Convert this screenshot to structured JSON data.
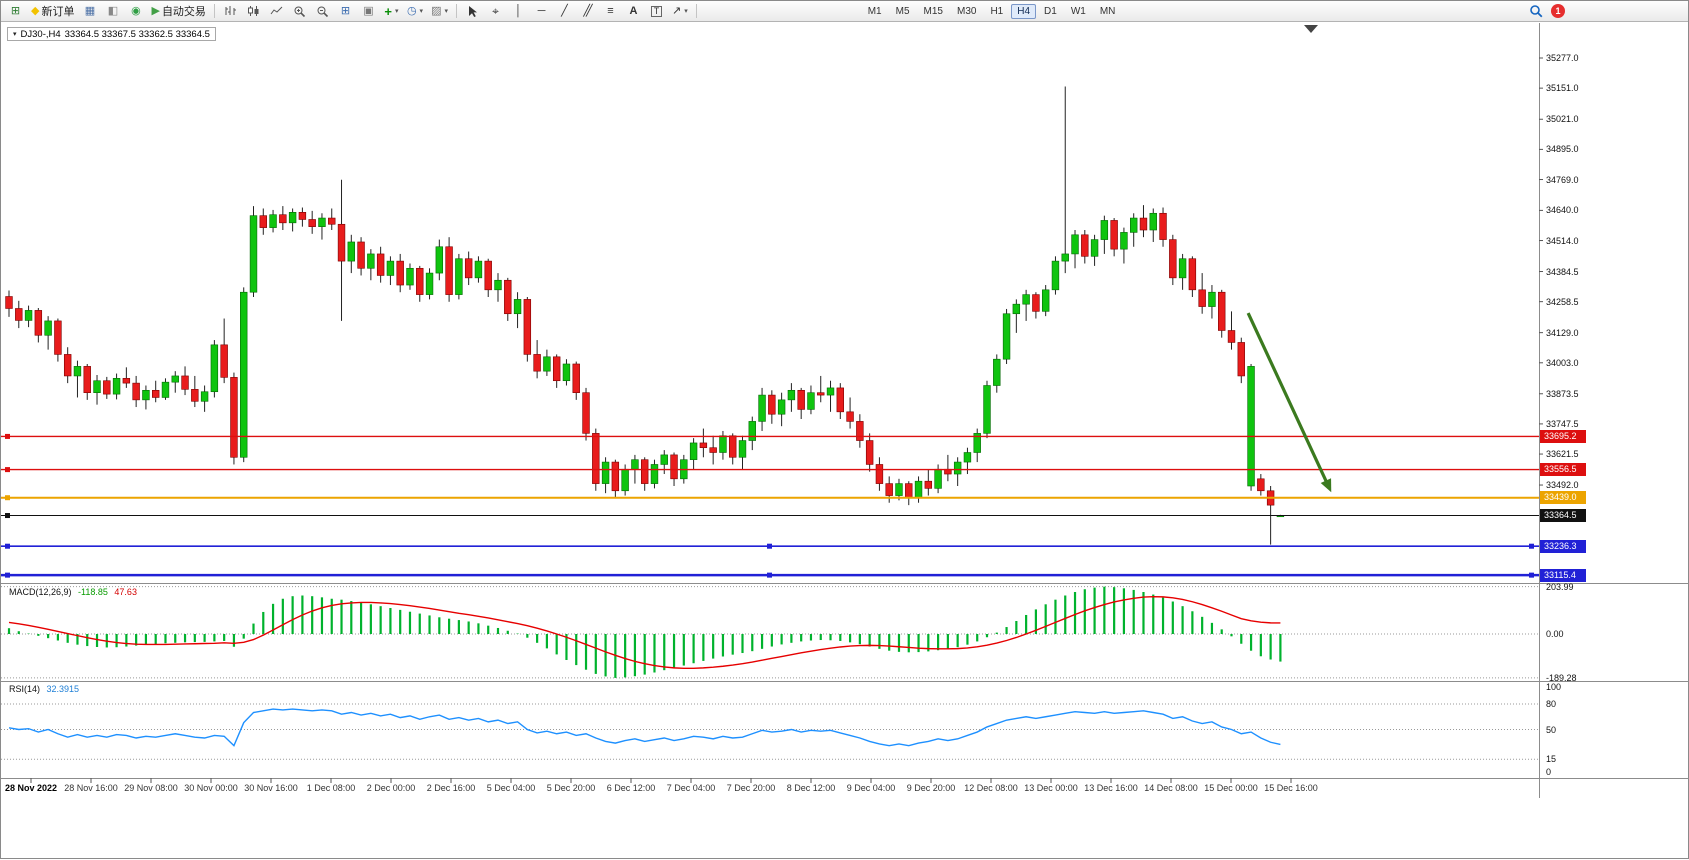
{
  "toolbar": {
    "new_order_label": "新订单",
    "auto_trading_label": "自动交易",
    "timeframes": [
      "M1",
      "M5",
      "M15",
      "M30",
      "H1",
      "H4",
      "D1",
      "W1",
      "MN"
    ],
    "active_timeframe": "H4",
    "notification_badge": "1",
    "text_tool_label": "A",
    "label_tool_label": "T"
  },
  "chart": {
    "title_symbol": "DJ30-,H4",
    "title_ohlc": "33364.5 33367.5 33362.5 33364.5",
    "price_ticks": [
      "35277.0",
      "35151.0",
      "35021.0",
      "34895.0",
      "34769.0",
      "34640.0",
      "34514.0",
      "34384.5",
      "34258.5",
      "34129.0",
      "34003.0",
      "33873.5",
      "33747.5",
      "33621.5",
      "33492.0"
    ],
    "lines": [
      {
        "label": "33695.2",
        "price": 33695.2,
        "color": "#dd0f0f",
        "width": 1.4
      },
      {
        "label": "33556.5",
        "price": 33556.5,
        "color": "#dd0f0f",
        "width": 1.4
      },
      {
        "label": "33439.0",
        "price": 33439.0,
        "color": "#eca400",
        "width": 2.0
      },
      {
        "label": "33364.5",
        "price": 33364.5,
        "color": "#111111",
        "width": 1.0
      },
      {
        "label": "33236.3",
        "price": 33236.3,
        "color": "#2121d6",
        "width": 1.6
      },
      {
        "label": "33115.4",
        "price": 33115.4,
        "color": "#2121d6",
        "width": 2.4
      }
    ],
    "dates": [
      "28 Nov 2022",
      "28 Nov 16:00",
      "29 Nov 08:00",
      "30 Nov 00:00",
      "30 Nov 16:00",
      "1 Dec 08:00",
      "2 Dec 00:00",
      "2 Dec 16:00",
      "5 Dec 04:00",
      "5 Dec 20:00",
      "6 Dec 12:00",
      "7 Dec 04:00",
      "7 Dec 20:00",
      "8 Dec 12:00",
      "9 Dec 04:00",
      "9 Dec 20:00",
      "12 Dec 08:00",
      "13 Dec 00:00",
      "13 Dec 16:00",
      "14 Dec 08:00",
      "15 Dec 00:00",
      "15 Dec 16:00"
    ]
  },
  "indicators": {
    "macd": {
      "name": "MACD(12,26,9)",
      "value_main": "-118.85",
      "value_signal": "47.63",
      "axis_labels": [
        "203.99",
        "0.00",
        "-189.28"
      ]
    },
    "rsi": {
      "name": "RSI(14)",
      "value": "32.3915",
      "axis_labels": [
        "100",
        "80",
        "50",
        "15",
        "0"
      ]
    }
  },
  "chart_data": {
    "type": "candlestick",
    "symbol": "DJ30-",
    "timeframe": "H4",
    "title": "DJ30-,H4 33364.5 33367.5 33362.5 33364.5",
    "y_axis_range": [
      33080,
      35420
    ],
    "price_lines": [
      33695.2,
      33556.5,
      33439.0,
      33364.5,
      33236.3,
      33115.4
    ],
    "candles": [
      [
        34280,
        34305,
        34195,
        34230
      ],
      [
        34230,
        34262,
        34148,
        34180
      ],
      [
        34180,
        34242,
        34152,
        34222
      ],
      [
        34222,
        34232,
        34088,
        34118
      ],
      [
        34118,
        34198,
        34058,
        34178
      ],
      [
        34178,
        34188,
        34008,
        34038
      ],
      [
        34038,
        34068,
        33918,
        33948
      ],
      [
        33948,
        34012,
        33858,
        33988
      ],
      [
        33988,
        33998,
        33848,
        33878
      ],
      [
        33878,
        33952,
        33828,
        33928
      ],
      [
        33928,
        33944,
        33852,
        33872
      ],
      [
        33872,
        33958,
        33850,
        33938
      ],
      [
        33938,
        33984,
        33898,
        33918
      ],
      [
        33918,
        33948,
        33818,
        33848
      ],
      [
        33848,
        33908,
        33808,
        33888
      ],
      [
        33888,
        33928,
        33838,
        33858
      ],
      [
        33858,
        33938,
        33848,
        33922
      ],
      [
        33922,
        33968,
        33878,
        33948
      ],
      [
        33948,
        33988,
        33868,
        33892
      ],
      [
        33892,
        33948,
        33818,
        33842
      ],
      [
        33842,
        33908,
        33798,
        33882
      ],
      [
        33882,
        34098,
        33858,
        34078
      ],
      [
        34078,
        34188,
        33918,
        33942
      ],
      [
        33942,
        33962,
        33578,
        33608
      ],
      [
        33608,
        34318,
        33588,
        34298
      ],
      [
        34298,
        34658,
        34278,
        34618
      ],
      [
        34618,
        34648,
        34538,
        34568
      ],
      [
        34568,
        34642,
        34548,
        34622
      ],
      [
        34622,
        34658,
        34558,
        34588
      ],
      [
        34588,
        34648,
        34552,
        34632
      ],
      [
        34632,
        34652,
        34572,
        34602
      ],
      [
        34602,
        34638,
        34542,
        34572
      ],
      [
        34572,
        34628,
        34518,
        34608
      ],
      [
        34608,
        34648,
        34558,
        34582
      ],
      [
        34582,
        34768,
        34178,
        34428
      ],
      [
        34428,
        34538,
        34378,
        34508
      ],
      [
        34508,
        34528,
        34368,
        34398
      ],
      [
        34398,
        34478,
        34348,
        34458
      ],
      [
        34458,
        34488,
        34338,
        34368
      ],
      [
        34368,
        34448,
        34328,
        34428
      ],
      [
        34428,
        34458,
        34298,
        34328
      ],
      [
        34328,
        34418,
        34308,
        34398
      ],
      [
        34398,
        34408,
        34258,
        34288
      ],
      [
        34288,
        34398,
        34268,
        34378
      ],
      [
        34378,
        34518,
        34348,
        34488
      ],
      [
        34488,
        34528,
        34258,
        34288
      ],
      [
        34288,
        34458,
        34268,
        34438
      ],
      [
        34438,
        34468,
        34328,
        34358
      ],
      [
        34358,
        34448,
        34338,
        34428
      ],
      [
        34428,
        34438,
        34278,
        34308
      ],
      [
        34308,
        34378,
        34258,
        34348
      ],
      [
        34348,
        34358,
        34178,
        34208
      ],
      [
        34208,
        34298,
        34148,
        34268
      ],
      [
        34268,
        34278,
        34008,
        34038
      ],
      [
        34038,
        34098,
        33938,
        33968
      ],
      [
        33968,
        34058,
        33948,
        34028
      ],
      [
        34028,
        34038,
        33898,
        33928
      ],
      [
        33928,
        34018,
        33908,
        33998
      ],
      [
        33998,
        34008,
        33848,
        33878
      ],
      [
        33878,
        33898,
        33678,
        33708
      ],
      [
        33708,
        33728,
        33468,
        33498
      ],
      [
        33498,
        33608,
        33458,
        33588
      ],
      [
        33588,
        33598,
        33438,
        33468
      ],
      [
        33468,
        33578,
        33448,
        33558
      ],
      [
        33558,
        33618,
        33498,
        33598
      ],
      [
        33598,
        33608,
        33468,
        33498
      ],
      [
        33498,
        33598,
        33478,
        33578
      ],
      [
        33578,
        33638,
        33538,
        33618
      ],
      [
        33618,
        33628,
        33488,
        33518
      ],
      [
        33518,
        33618,
        33498,
        33598
      ],
      [
        33598,
        33688,
        33558,
        33668
      ],
      [
        33668,
        33728,
        33608,
        33648
      ],
      [
        33648,
        33698,
        33578,
        33628
      ],
      [
        33628,
        33718,
        33598,
        33698
      ],
      [
        33698,
        33708,
        33578,
        33608
      ],
      [
        33608,
        33698,
        33558,
        33678
      ],
      [
        33678,
        33778,
        33638,
        33758
      ],
      [
        33758,
        33898,
        33718,
        33868
      ],
      [
        33868,
        33888,
        33748,
        33788
      ],
      [
        33788,
        33878,
        33738,
        33848
      ],
      [
        33848,
        33918,
        33798,
        33888
      ],
      [
        33888,
        33898,
        33768,
        33808
      ],
      [
        33808,
        33908,
        33788,
        33878
      ],
      [
        33878,
        33948,
        33838,
        33868
      ],
      [
        33868,
        33928,
        33798,
        33898
      ],
      [
        33898,
        33918,
        33768,
        33798
      ],
      [
        33798,
        33858,
        33728,
        33758
      ],
      [
        33758,
        33788,
        33648,
        33678
      ],
      [
        33678,
        33708,
        33548,
        33578
      ],
      [
        33578,
        33608,
        33468,
        33498
      ],
      [
        33498,
        33528,
        33418,
        33448
      ],
      [
        33448,
        33518,
        33428,
        33498
      ],
      [
        33498,
        33508,
        33408,
        33438
      ],
      [
        33438,
        33528,
        33418,
        33508
      ],
      [
        33508,
        33558,
        33448,
        33478
      ],
      [
        33478,
        33578,
        33458,
        33558
      ],
      [
        33558,
        33618,
        33508,
        33538
      ],
      [
        33538,
        33608,
        33488,
        33588
      ],
      [
        33588,
        33648,
        33538,
        33628
      ],
      [
        33628,
        33728,
        33588,
        33708
      ],
      [
        33708,
        33928,
        33688,
        33908
      ],
      [
        33908,
        34038,
        33878,
        34018
      ],
      [
        34018,
        34228,
        33998,
        34208
      ],
      [
        34208,
        34268,
        34128,
        34248
      ],
      [
        34248,
        34308,
        34178,
        34288
      ],
      [
        34288,
        34298,
        34188,
        34218
      ],
      [
        34218,
        34328,
        34198,
        34308
      ],
      [
        34308,
        34448,
        34288,
        34428
      ],
      [
        34428,
        35158,
        34378,
        34458
      ],
      [
        34458,
        34558,
        34398,
        34538
      ],
      [
        34538,
        34558,
        34418,
        34448
      ],
      [
        34448,
        34538,
        34408,
        34518
      ],
      [
        34518,
        34618,
        34458,
        34598
      ],
      [
        34598,
        34608,
        34448,
        34478
      ],
      [
        34478,
        34568,
        34418,
        34548
      ],
      [
        34548,
        34628,
        34488,
        34608
      ],
      [
        34608,
        34662,
        34528,
        34558
      ],
      [
        34558,
        34648,
        34508,
        34628
      ],
      [
        34628,
        34652,
        34488,
        34518
      ],
      [
        34518,
        34538,
        34328,
        34358
      ],
      [
        34358,
        34458,
        34308,
        34438
      ],
      [
        34438,
        34448,
        34278,
        34308
      ],
      [
        34308,
        34378,
        34208,
        34238
      ],
      [
        34238,
        34328,
        34188,
        34298
      ],
      [
        34298,
        34308,
        34108,
        34138
      ],
      [
        34138,
        34218,
        34058,
        34088
      ],
      [
        34088,
        34108,
        33918,
        33948
      ],
      [
        33488,
        33998,
        33468,
        33988
      ],
      [
        33518,
        33538,
        33448,
        33468
      ],
      [
        33468,
        33488,
        33243,
        33408
      ],
      [
        33364.5,
        33367.5,
        33362.5,
        33364.5
      ]
    ],
    "macd": {
      "histogram": [
        25,
        12,
        2,
        -8,
        -18,
        -28,
        -38,
        -46,
        -52,
        -56,
        -58,
        -57,
        -54,
        -50,
        -46,
        -43,
        -40,
        -38,
        -36,
        -35,
        -34,
        -32,
        -30,
        -55,
        -20,
        45,
        95,
        130,
        152,
        163,
        166,
        163,
        158,
        152,
        148,
        142,
        135,
        128,
        120,
        112,
        104,
        96,
        88,
        80,
        72,
        66,
        60,
        54,
        46,
        36,
        26,
        14,
        2,
        -16,
        -38,
        -62,
        -88,
        -112,
        -134,
        -154,
        -172,
        -183,
        -189.28,
        -187,
        -182,
        -175,
        -166,
        -156,
        -146,
        -136,
        -126,
        -116,
        -106,
        -97,
        -89,
        -82,
        -74,
        -64,
        -54,
        -45,
        -38,
        -32,
        -28,
        -26,
        -27,
        -30,
        -36,
        -44,
        -54,
        -64,
        -72,
        -77,
        -79,
        -78,
        -75,
        -70,
        -64,
        -57,
        -46,
        -32,
        -14,
        6,
        30,
        56,
        82,
        106,
        128,
        148,
        166,
        181,
        193,
        200,
        203.99,
        202,
        197,
        190,
        181,
        170,
        157,
        140,
        120,
        98,
        74,
        48,
        20,
        -10,
        -42,
        -72,
        -96,
        -110,
        -118.85
      ],
      "signal": [
        50,
        44,
        37,
        29,
        20,
        11,
        2,
        -7,
        -16,
        -24,
        -31,
        -37,
        -41,
        -44,
        -45,
        -45,
        -45,
        -44,
        -43,
        -42,
        -41,
        -40,
        -38,
        -40,
        -36,
        -24,
        -5,
        17,
        40,
        62,
        82,
        99,
        113,
        123,
        130,
        134,
        136,
        136,
        134,
        131,
        127,
        122,
        116,
        110,
        103,
        96,
        89,
        83,
        76,
        69,
        61,
        53,
        45,
        36,
        25,
        13,
        0,
        -14,
        -29,
        -45,
        -61,
        -77,
        -92,
        -106,
        -118,
        -128,
        -136,
        -142,
        -146,
        -148,
        -148,
        -146,
        -143,
        -139,
        -134,
        -128,
        -121,
        -113,
        -105,
        -97,
        -89,
        -81,
        -74,
        -67,
        -61,
        -56,
        -52,
        -50,
        -49,
        -50,
        -52,
        -55,
        -58,
        -61,
        -63,
        -64,
        -64,
        -63,
        -60,
        -55,
        -48,
        -39,
        -28,
        -15,
        0,
        16,
        33,
        50,
        67,
        84,
        100,
        114,
        127,
        138,
        147,
        154,
        159,
        161,
        160,
        156,
        149,
        139,
        127,
        113,
        98,
        82,
        66,
        57,
        51,
        48,
        47.63
      ],
      "pane_range": [
        -189.28,
        203.99
      ]
    },
    "rsi": {
      "values": [
        52,
        50,
        51,
        47,
        50,
        45,
        41,
        44,
        41,
        43,
        41,
        44,
        43,
        40,
        42,
        41,
        43,
        45,
        43,
        41,
        40,
        43,
        42,
        31,
        58,
        70,
        72,
        74,
        73,
        74,
        73,
        72,
        73,
        72,
        68,
        70,
        67,
        69,
        66,
        68,
        64,
        66,
        62,
        65,
        67,
        62,
        64,
        61,
        63,
        59,
        61,
        57,
        59,
        50,
        46,
        48,
        45,
        47,
        43,
        45,
        40,
        36,
        34,
        37,
        39,
        36,
        38,
        40,
        37,
        39,
        42,
        41,
        39,
        42,
        40,
        41,
        45,
        49,
        47,
        48,
        50,
        47,
        49,
        48,
        49,
        46,
        43,
        40,
        36,
        33,
        31,
        33,
        31,
        34,
        36,
        39,
        37,
        39,
        43,
        47,
        53,
        57,
        61,
        63,
        65,
        63,
        65,
        67,
        69,
        71,
        70,
        69,
        71,
        69,
        70,
        71,
        72,
        70,
        68,
        63,
        65,
        60,
        57,
        59,
        53,
        50,
        45,
        47,
        40,
        35,
        32.39
      ],
      "levels": [
        80,
        50,
        15
      ],
      "pane_range": [
        0,
        100
      ]
    },
    "annotations": [
      {
        "type": "arrow",
        "from_index": 126.7,
        "from_price": 34211,
        "to_index": 135.2,
        "to_price": 33462,
        "color": "#3b7a1f"
      }
    ]
  }
}
